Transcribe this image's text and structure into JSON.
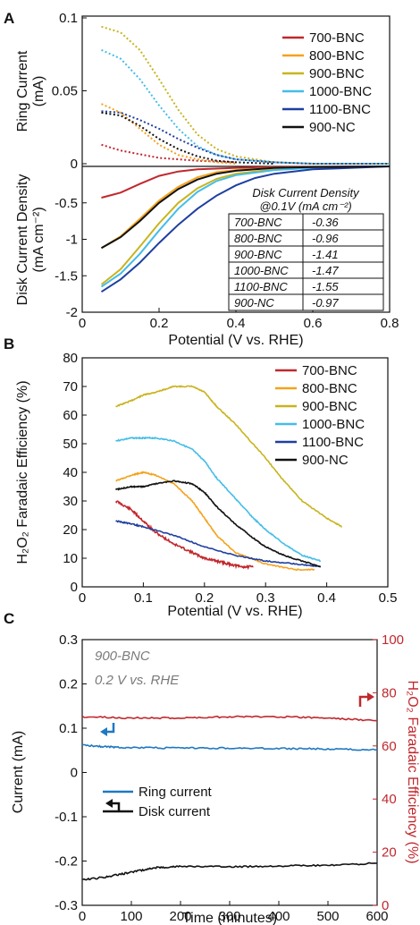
{
  "chart_data": [
    {
      "panel": "A",
      "type": "line",
      "subplots": [
        {
          "name": "ring",
          "ylabel": "Ring Current",
          "yunit": "(mA)",
          "ylim": [
            0,
            0.1
          ],
          "yticks": [
            "0.1",
            "0.05",
            "0"
          ],
          "series": [
            {
              "name": "700-BNC",
              "color": "#c0282d",
              "x": [
                0.05,
                0.1,
                0.2,
                0.3,
                0.4
              ],
              "y": [
                0.013,
                0.009,
                0.004,
                0.002,
                0.001
              ]
            },
            {
              "name": "800-BNC",
              "color": "#f4a21c",
              "x": [
                0.05,
                0.1,
                0.15,
                0.2,
                0.25,
                0.3,
                0.35,
                0.4
              ],
              "y": [
                0.041,
                0.035,
                0.024,
                0.013,
                0.006,
                0.003,
                0.001,
                0.0
              ]
            },
            {
              "name": "900-BNC",
              "color": "#c8b41e",
              "x": [
                0.05,
                0.1,
                0.15,
                0.2,
                0.25,
                0.3,
                0.35,
                0.4,
                0.5,
                0.6,
                0.8
              ],
              "y": [
                0.094,
                0.09,
                0.078,
                0.058,
                0.037,
                0.02,
                0.01,
                0.005,
                0.001,
                0.0,
                0.0
              ]
            },
            {
              "name": "1000-BNC",
              "color": "#45bde8",
              "x": [
                0.05,
                0.1,
                0.15,
                0.2,
                0.25,
                0.3,
                0.35,
                0.4,
                0.5,
                0.6,
                0.8
              ],
              "y": [
                0.078,
                0.072,
                0.058,
                0.04,
                0.024,
                0.012,
                0.006,
                0.003,
                0.001,
                0.0,
                0.0
              ]
            },
            {
              "name": "1100-BNC",
              "color": "#1f3fa0",
              "x": [
                0.05,
                0.1,
                0.15,
                0.2,
                0.25,
                0.3,
                0.35,
                0.4,
                0.5,
                0.6,
                0.8
              ],
              "y": [
                0.036,
                0.035,
                0.03,
                0.024,
                0.017,
                0.011,
                0.006,
                0.003,
                0.001,
                0.0,
                0.0
              ]
            },
            {
              "name": "900-NC",
              "color": "#111111",
              "x": [
                0.05,
                0.1,
                0.15,
                0.2,
                0.25,
                0.3,
                0.35,
                0.4,
                0.5
              ],
              "y": [
                0.035,
                0.033,
                0.026,
                0.017,
                0.01,
                0.005,
                0.002,
                0.001,
                0.0
              ]
            }
          ]
        },
        {
          "name": "disk",
          "ylabel": "Disk Current Density",
          "yunit": "(mA cm⁻²)",
          "ylim": [
            -2,
            0
          ],
          "xlabel": "Potential (V vs. RHE)",
          "xlim": [
            0,
            0.8
          ],
          "xticks": [
            "0",
            "0.2",
            "0.4",
            "0.6",
            "0.8"
          ],
          "yticks": [
            "-0.5",
            "-1",
            "-1.5",
            "-2"
          ],
          "series": [
            {
              "name": "700-BNC",
              "color": "#c0282d",
              "x": [
                0.05,
                0.1,
                0.15,
                0.2,
                0.25,
                0.3,
                0.4,
                0.5,
                0.6,
                0.8
              ],
              "y": [
                -0.43,
                -0.36,
                -0.24,
                -0.13,
                -0.07,
                -0.04,
                -0.02,
                -0.01,
                -0.005,
                0.0
              ]
            },
            {
              "name": "800-BNC",
              "color": "#f4a21c",
              "x": [
                0.05,
                0.1,
                0.15,
                0.2,
                0.25,
                0.3,
                0.35,
                0.4,
                0.5,
                0.6,
                0.8
              ],
              "y": [
                -1.12,
                -0.96,
                -0.72,
                -0.47,
                -0.28,
                -0.15,
                -0.08,
                -0.05,
                -0.02,
                -0.01,
                0.0
              ]
            },
            {
              "name": "900-BNC",
              "color": "#c8b41e",
              "x": [
                0.05,
                0.1,
                0.15,
                0.2,
                0.25,
                0.3,
                0.35,
                0.4,
                0.5,
                0.6,
                0.8
              ],
              "y": [
                -1.62,
                -1.41,
                -1.1,
                -0.78,
                -0.5,
                -0.3,
                -0.17,
                -0.1,
                -0.04,
                -0.02,
                0.0
              ]
            },
            {
              "name": "1000-BNC",
              "color": "#45bde8",
              "x": [
                0.05,
                0.1,
                0.15,
                0.2,
                0.25,
                0.3,
                0.35,
                0.4,
                0.5,
                0.6,
                0.8
              ],
              "y": [
                -1.65,
                -1.47,
                -1.2,
                -0.88,
                -0.58,
                -0.35,
                -0.2,
                -0.12,
                -0.05,
                -0.02,
                0.0
              ]
            },
            {
              "name": "1100-BNC",
              "color": "#1f3fa0",
              "x": [
                0.05,
                0.1,
                0.15,
                0.2,
                0.25,
                0.3,
                0.35,
                0.4,
                0.45,
                0.5,
                0.6,
                0.8
              ],
              "y": [
                -1.72,
                -1.55,
                -1.32,
                -1.05,
                -0.8,
                -0.58,
                -0.4,
                -0.26,
                -0.16,
                -0.1,
                -0.04,
                0.0
              ]
            },
            {
              "name": "900-NC",
              "color": "#111111",
              "x": [
                0.05,
                0.1,
                0.15,
                0.2,
                0.25,
                0.3,
                0.35,
                0.4,
                0.5,
                0.6,
                0.8
              ],
              "y": [
                -1.12,
                -0.97,
                -0.75,
                -0.5,
                -0.31,
                -0.18,
                -0.1,
                -0.06,
                -0.02,
                -0.01,
                0.0
              ]
            }
          ],
          "table": {
            "title": "Disk Current Density",
            "subtitle": "@0.1V (mA cm⁻²)",
            "rows": [
              [
                "700-BNC",
                "-0.36"
              ],
              [
                "800-BNC",
                "-0.96"
              ],
              [
                "900-BNC",
                "-1.41"
              ],
              [
                "1000-BNC",
                "-1.47"
              ],
              [
                "1100-BNC",
                "-1.55"
              ],
              [
                "900-NC",
                "-0.97"
              ]
            ]
          }
        }
      ],
      "legend": [
        "700-BNC",
        "800-BNC",
        "900-BNC",
        "1000-BNC",
        "1100-BNC",
        "900-NC"
      ],
      "legend_position": "top-right"
    },
    {
      "panel": "B",
      "type": "line",
      "ylabel": "H₂O₂ Faradaic Efficiency (%)",
      "xlabel": "Potential (V vs. RHE)",
      "xlim": [
        0,
        0.5
      ],
      "ylim": [
        0,
        80
      ],
      "xticks": [
        "0",
        "0.1",
        "0.2",
        "0.3",
        "0.4",
        "0.5"
      ],
      "yticks": [
        "0",
        "10",
        "20",
        "30",
        "40",
        "50",
        "60",
        "70",
        "80"
      ],
      "series": [
        {
          "name": "700-BNC",
          "color": "#c0282d",
          "x": [
            0.055,
            0.08,
            0.1,
            0.12,
            0.15,
            0.18,
            0.2,
            0.22,
            0.24,
            0.26,
            0.28
          ],
          "y": [
            30,
            27,
            23,
            19,
            15,
            12,
            10,
            9,
            8,
            7,
            7
          ]
        },
        {
          "name": "800-BNC",
          "color": "#f4a21c",
          "x": [
            0.055,
            0.08,
            0.1,
            0.12,
            0.15,
            0.18,
            0.2,
            0.22,
            0.25,
            0.3,
            0.35,
            0.38
          ],
          "y": [
            37,
            39,
            40,
            39,
            36,
            30,
            24,
            18,
            12,
            8,
            6,
            6
          ]
        },
        {
          "name": "900-BNC",
          "color": "#c8b41e",
          "x": [
            0.055,
            0.08,
            0.1,
            0.12,
            0.15,
            0.18,
            0.2,
            0.22,
            0.25,
            0.3,
            0.33,
            0.36,
            0.4,
            0.425
          ],
          "y": [
            63,
            65,
            67,
            68,
            70,
            70,
            68,
            63,
            57,
            45,
            37,
            30,
            24,
            21
          ]
        },
        {
          "name": "1000-BNC",
          "color": "#45bde8",
          "x": [
            0.055,
            0.08,
            0.1,
            0.12,
            0.15,
            0.18,
            0.2,
            0.22,
            0.25,
            0.28,
            0.3,
            0.33,
            0.36,
            0.39
          ],
          "y": [
            51,
            52,
            52,
            52,
            51,
            48,
            44,
            38,
            31,
            24,
            20,
            15,
            11,
            9
          ]
        },
        {
          "name": "1100-BNC",
          "color": "#1f3fa0",
          "x": [
            0.055,
            0.08,
            0.1,
            0.15,
            0.2,
            0.25,
            0.3,
            0.35,
            0.39
          ],
          "y": [
            23,
            22,
            21,
            18,
            14,
            11,
            9,
            8,
            7
          ]
        },
        {
          "name": "900-NC",
          "color": "#111111",
          "x": [
            0.055,
            0.08,
            0.1,
            0.12,
            0.15,
            0.18,
            0.2,
            0.22,
            0.25,
            0.28,
            0.3,
            0.33,
            0.36,
            0.39
          ],
          "y": [
            34,
            35,
            35,
            36,
            37,
            36,
            33,
            28,
            22,
            17,
            14,
            11,
            9,
            7
          ]
        }
      ],
      "legend": [
        "700-BNC",
        "800-BNC",
        "900-BNC",
        "1000-BNC",
        "1100-BNC",
        "900-NC"
      ],
      "legend_position": "top-right"
    },
    {
      "panel": "C",
      "type": "line",
      "annotation": [
        "900-BNC",
        "0.2 V vs. RHE"
      ],
      "xlabel": "Time (minutes)",
      "xlim": [
        0,
        600
      ],
      "xticks": [
        "0",
        "100",
        "200",
        "300",
        "400",
        "500",
        "600"
      ],
      "ylabel_left": "Current (mA)",
      "ylim_left": [
        -0.3,
        0.3
      ],
      "yticks_left": [
        "-0.3",
        "-0.2",
        "-0.1",
        "0",
        "0.1",
        "0.2",
        "0.3"
      ],
      "ylabel_right": "H₂O₂ Faradaic Efficiency (%)",
      "ylim_right": [
        0,
        100
      ],
      "yticks_right": [
        "0",
        "20",
        "40",
        "60",
        "80",
        "100"
      ],
      "right_axis_color": "#c0282d",
      "series": [
        {
          "name": "Ring current",
          "axis": "left",
          "color": "#1f78c1",
          "x": [
            0,
            50,
            100,
            200,
            300,
            400,
            500,
            600
          ],
          "y": [
            0.062,
            0.058,
            0.056,
            0.055,
            0.055,
            0.054,
            0.053,
            0.051
          ]
        },
        {
          "name": "Disk current",
          "axis": "left",
          "color": "#111111",
          "x": [
            0,
            50,
            100,
            150,
            200,
            300,
            400,
            500,
            600
          ],
          "y": [
            -0.243,
            -0.236,
            -0.225,
            -0.215,
            -0.212,
            -0.213,
            -0.211,
            -0.21,
            -0.205
          ]
        },
        {
          "name": "",
          "axis": "right",
          "color": "#c0282d",
          "x": [
            0,
            100,
            200,
            300,
            400,
            500,
            600
          ],
          "y": [
            71,
            70.5,
            70.5,
            71,
            71,
            70.5,
            69.5
          ]
        }
      ],
      "legend": [
        "Ring current",
        "Disk current"
      ],
      "legend_position": "bottom-left"
    }
  ]
}
